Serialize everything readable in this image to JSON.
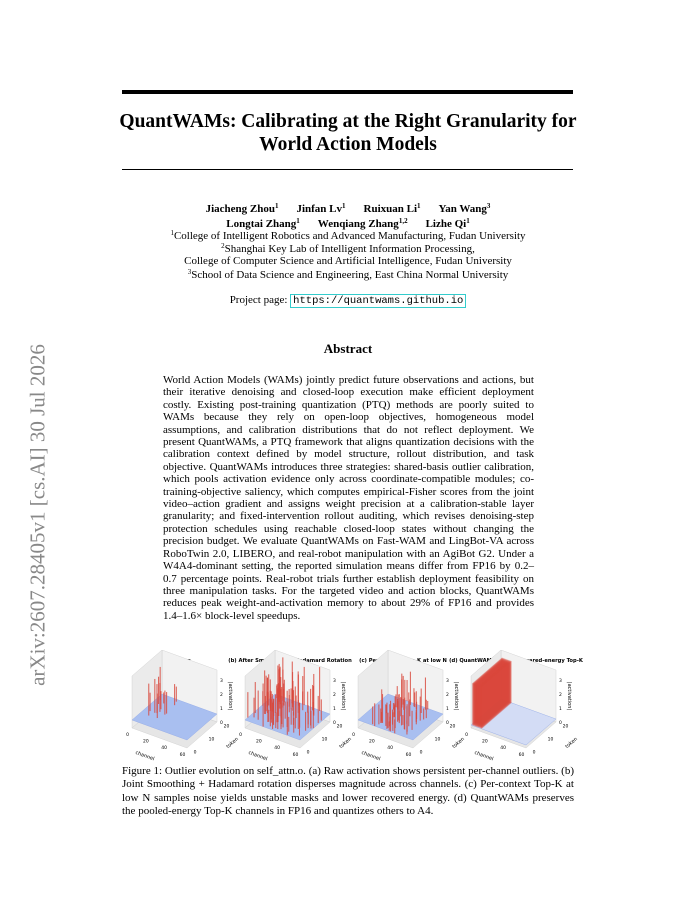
{
  "sidebar": "arXiv:2607.28405v1  [cs.AI]  30 Jul 2026",
  "title": [
    "QuantWAMs: Calibrating at the Right Granularity for",
    "World Action Models"
  ],
  "authors": [
    [
      {
        "name": "Jiacheng Zhou",
        "aff": "1"
      },
      {
        "name": "Jinfan Lv",
        "aff": "1"
      },
      {
        "name": "Ruixuan Li",
        "aff": "1"
      },
      {
        "name": "Yan Wang",
        "aff": "3"
      }
    ],
    [
      {
        "name": "Longtai Zhang",
        "aff": "1"
      },
      {
        "name": "Wenqiang Zhang",
        "aff": "1,2"
      },
      {
        "name": "Lizhe Qi",
        "aff": "1"
      }
    ]
  ],
  "affiliations": [
    {
      "sup": "1",
      "text": "College of Intelligent Robotics and Advanced Manufacturing, Fudan University"
    },
    {
      "sup": "2",
      "text": "Shanghai Key Lab of Intelligent Information Processing,"
    },
    {
      "sup": "",
      "text": "College of Computer Science and Artificial Intelligence, Fudan University"
    },
    {
      "sup": "3",
      "text": "School of Data Science and Engineering, East China Normal University"
    }
  ],
  "project": {
    "label": "Project page:",
    "url": "https://quantwams.github.io"
  },
  "abstract": {
    "heading": "Abstract",
    "text": "World Action Models (WAMs) jointly predict future observations and actions, but their iterative denoising and closed-loop execution make efficient deployment costly. Existing post-training quantization (PTQ) methods are poorly suited to WAMs because they rely on open-loop objectives, homogeneous model assumptions, and calibration distributions that do not reflect deployment. We present QuantWAMs, a PTQ framework that aligns quantization decisions with the calibration context defined by model structure, rollout distribution, and task objective. QuantWAMs introduces three strategies: shared-basis outlier calibration, which pools activation evidence only across coordinate-compatible modules; co-training-objective saliency, which computes empirical-Fisher scores from the joint video–action gradient and assigns weight precision at a calibration-stable layer granularity; and fixed-intervention rollout auditing, which revises denoising-step protection schedules using reachable closed-loop states without changing the precision budget. We evaluate QuantWAMs on Fast-WAM and LingBot-VA across RoboTwin 2.0, LIBERO, and real-robot manipulation with an AgiBot G2. Under a W4A4-dominant setting, the reported simulation means differ from FP16 by 0.2–0.7 percentage points. Real-robot trials further establish deployment feasibility on three manipulation tasks. For the targeted video and action blocks, QuantWAMs reduces peak weight-and-activation memory to about 29% of FP16 and provides 1.4–1.6× block-level speedups."
  },
  "figure": {
    "panels": [
      "(a) Raw x",
      "(b) After Smoothing + Hadamard Rotation",
      "(c) Per-context Top-K at low N",
      "(d) QuantWAMs Pooled squared-energy Top-K"
    ],
    "xticks": [
      "0",
      "20",
      "40",
      "60"
    ],
    "xlabel": "channel",
    "yticks": [
      "0",
      "10",
      "20"
    ],
    "ylabel": "token",
    "zticks": [
      "0",
      "1",
      "2",
      "3"
    ],
    "zlabel": "|activation|",
    "caption": "Figure 1: Outlier evolution on self_attn.o. (a) Raw activation shows persistent per-channel outliers. (b) Joint Smoothing + Hadamard rotation disperses magnitude across channels. (c) Per-context Top-K at low N samples noise yields unstable masks and lower recovered energy. (d) QuantWAMs preserves the pooled-energy Top-K channels in FP16 and quantizes others to A4."
  }
}
